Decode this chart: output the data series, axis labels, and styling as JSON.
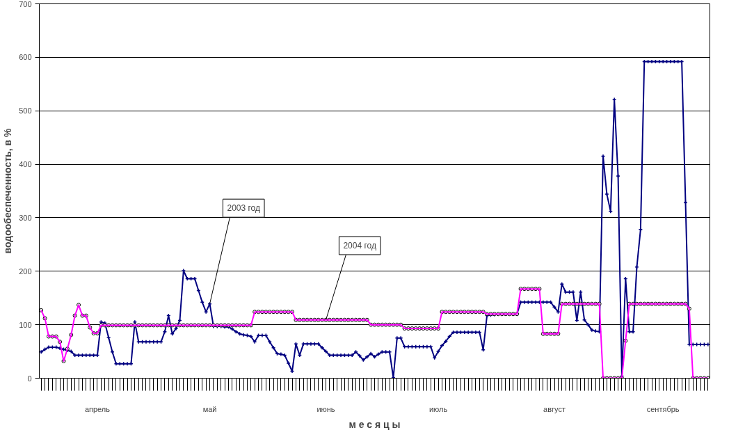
{
  "chart_data": {
    "type": "line",
    "xlabel": "м е с я ц ы",
    "ylabel": "водообеспеченность, в %",
    "categories": [
      null,
      null,
      null,
      null,
      null,
      null,
      null,
      null,
      null,
      null,
      null,
      null,
      null,
      null,
      null,
      "апрель",
      null,
      null,
      null,
      null,
      null,
      null,
      null,
      null,
      null,
      null,
      null,
      null,
      null,
      null,
      null,
      null,
      null,
      null,
      null,
      null,
      null,
      null,
      null,
      null,
      null,
      null,
      null,
      null,
      null,
      "май",
      null,
      null,
      null,
      null,
      null,
      null,
      null,
      null,
      null,
      null,
      null,
      null,
      null,
      null,
      null,
      null,
      null,
      null,
      null,
      null,
      null,
      null,
      null,
      null,
      null,
      null,
      null,
      null,
      null,
      null,
      "июнь",
      null,
      null,
      null,
      null,
      null,
      null,
      null,
      null,
      null,
      null,
      null,
      null,
      null,
      null,
      null,
      null,
      null,
      null,
      null,
      null,
      null,
      null,
      null,
      null,
      null,
      null,
      null,
      null,
      null,
      "июль",
      null,
      null,
      null,
      null,
      null,
      null,
      null,
      null,
      null,
      null,
      null,
      null,
      null,
      null,
      null,
      null,
      null,
      null,
      null,
      null,
      null,
      null,
      null,
      null,
      null,
      null,
      null,
      null,
      null,
      null,
      "август",
      null,
      null,
      null,
      null,
      null,
      null,
      null,
      null,
      null,
      null,
      null,
      null,
      null,
      null,
      null,
      null,
      null,
      null,
      null,
      null,
      null,
      null,
      null,
      null,
      null,
      null,
      null,
      null,
      "сентябрь",
      null,
      null,
      null,
      null,
      null,
      null,
      null,
      null,
      null,
      null,
      null,
      null
    ],
    "ylim": [
      0,
      700
    ],
    "yticks": [
      0,
      100,
      200,
      300,
      400,
      500,
      600,
      700
    ],
    "grid": "y",
    "line_style": "solid",
    "annotations": [
      {
        "text": "2003 год",
        "x": "май",
        "y": 139
      },
      {
        "text": "2004 год",
        "x": "июнь",
        "y": 109
      }
    ],
    "series": [
      {
        "color": "#000080",
        "marker": "cross",
        "values": [
          49,
          54,
          58,
          58,
          58,
          56,
          54,
          52,
          50,
          43,
          43,
          43,
          43,
          43,
          43,
          43,
          105,
          103,
          76,
          49,
          27,
          27,
          27,
          27,
          27,
          105,
          68,
          68,
          68,
          68,
          68,
          68,
          68,
          87,
          117,
          83,
          93,
          108,
          201,
          186,
          186,
          186,
          164,
          142,
          124,
          139,
          97,
          97,
          97,
          96,
          96,
          92,
          87,
          83,
          81,
          80,
          78,
          68,
          80,
          80,
          80,
          68,
          57,
          46,
          45,
          43,
          28,
          13,
          64,
          43,
          64,
          64,
          64,
          64,
          64,
          57,
          50,
          43,
          43,
          43,
          43,
          43,
          43,
          43,
          49,
          42,
          34,
          40,
          46,
          40,
          45,
          49,
          49,
          49,
          1,
          75,
          75,
          59,
          59,
          59,
          59,
          59,
          59,
          59,
          59,
          38,
          50,
          61,
          69,
          78,
          86,
          86,
          86,
          86,
          86,
          86,
          86,
          86,
          53,
          117,
          118,
          119,
          120,
          120,
          120,
          120,
          120,
          120,
          142,
          142,
          142,
          142,
          142,
          142,
          142,
          142,
          142,
          133,
          124,
          176,
          161,
          161,
          161,
          108,
          161,
          109,
          100,
          90,
          88,
          87,
          415,
          344,
          312,
          521,
          378,
          4,
          186,
          87,
          87,
          208,
          278,
          592,
          592,
          592,
          592,
          592,
          592,
          592,
          592,
          592,
          592,
          592,
          329,
          63,
          63,
          63,
          63,
          63,
          63
        ]
      },
      {
        "color": "#ff00ff",
        "marker": "circle",
        "values": [
          127,
          112,
          78,
          78,
          78,
          68,
          32,
          55,
          81,
          117,
          137,
          117,
          117,
          95,
          84,
          84,
          99,
          99,
          99,
          99,
          99,
          99,
          99,
          99,
          99,
          99,
          99,
          99,
          99,
          99,
          99,
          99,
          99,
          99,
          99,
          99,
          99,
          99,
          99,
          99,
          99,
          99,
          99,
          99,
          99,
          99,
          99,
          99,
          99,
          99,
          99,
          99,
          99,
          99,
          99,
          99,
          99,
          124,
          124,
          124,
          124,
          124,
          124,
          124,
          124,
          124,
          124,
          124,
          109,
          109,
          109,
          109,
          109,
          109,
          109,
          109,
          109,
          109,
          109,
          109,
          109,
          109,
          109,
          109,
          109,
          109,
          109,
          109,
          100,
          100,
          100,
          100,
          100,
          100,
          100,
          100,
          100,
          93,
          93,
          93,
          93,
          93,
          93,
          93,
          93,
          93,
          93,
          124,
          124,
          124,
          124,
          124,
          124,
          124,
          124,
          124,
          124,
          124,
          124,
          120,
          120,
          120,
          120,
          120,
          120,
          120,
          120,
          120,
          167,
          167,
          167,
          167,
          167,
          167,
          83,
          83,
          83,
          83,
          83,
          139,
          139,
          139,
          139,
          139,
          139,
          139,
          139,
          139,
          139,
          139,
          0,
          0,
          0,
          0,
          0,
          0,
          70,
          139,
          139,
          139,
          139,
          139,
          139,
          139,
          139,
          139,
          139,
          139,
          139,
          139,
          139,
          139,
          139,
          130,
          0,
          0,
          0,
          0,
          0
        ]
      }
    ]
  }
}
